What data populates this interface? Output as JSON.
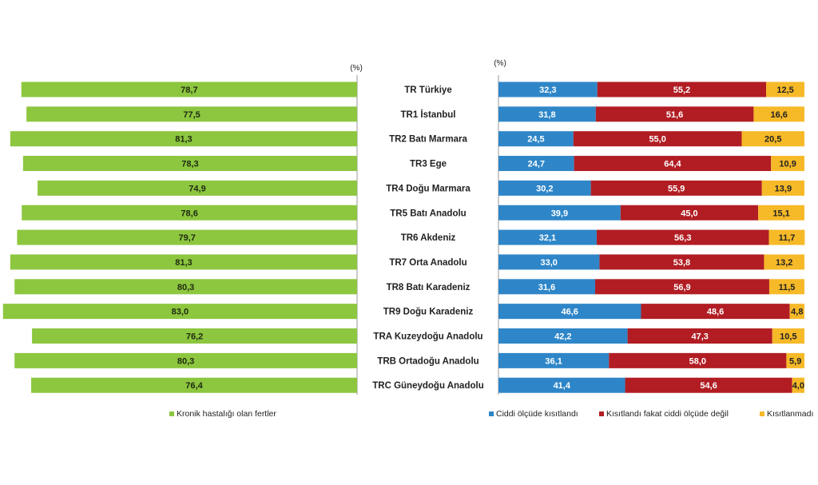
{
  "chart_data": [
    {
      "type": "bar",
      "orientation": "horizontal",
      "unit_label": "(%)",
      "categories": [
        "TR Türkiye",
        "TR1 İstanbul",
        "TR2 Batı Marmara",
        "TR3 Ege",
        "TR4 Doğu Marmara",
        "TR5 Batı Anadolu",
        "TR6 Akdeniz",
        "TR7 Orta Anadolu",
        "TR8 Batı Karadeniz",
        "TR9 Doğu Karadeniz",
        "TRA Kuzeydoğu Anadolu",
        "TRB Ortadoğu Anadolu",
        "TRC Güneydoğu Anadolu"
      ],
      "series": [
        {
          "name": "Kronik hastalığı olan fertler",
          "color": "#8dc63f",
          "values": [
            78.7,
            77.5,
            81.3,
            78.3,
            74.9,
            78.6,
            79.7,
            81.3,
            80.3,
            83.0,
            76.2,
            80.3,
            76.4
          ],
          "labels": [
            "78,7",
            "77,5",
            "81,3",
            "78,3",
            "74,9",
            "78,6",
            "79,7",
            "81,3",
            "80,3",
            "83,0",
            "76,2",
            "80,3",
            "76,4"
          ]
        }
      ],
      "legend": "bottom-left"
    },
    {
      "type": "bar",
      "orientation": "horizontal",
      "stacked": true,
      "unit_label": "(%)",
      "xlim": [
        0,
        100
      ],
      "categories": [
        "TR Türkiye",
        "TR1 İstanbul",
        "TR2 Batı Marmara",
        "TR3 Ege",
        "TR4 Doğu Marmara",
        "TR5 Batı Anadolu",
        "TR6 Akdeniz",
        "TR7 Orta Anadolu",
        "TR8 Batı Karadeniz",
        "TR9 Doğu Karadeniz",
        "TRA Kuzeydoğu Anadolu",
        "TRB Ortadoğu Anadolu",
        "TRC Güneydoğu Anadolu"
      ],
      "series": [
        {
          "name": "Ciddi ölçüde kısıtlandı",
          "color": "#2e86c8",
          "values": [
            32.3,
            31.8,
            24.5,
            24.7,
            30.2,
            39.9,
            32.1,
            33.0,
            31.6,
            46.6,
            42.2,
            36.1,
            41.4
          ],
          "labels": [
            "32,3",
            "31,8",
            "24,5",
            "24,7",
            "30,2",
            "39,9",
            "32,1",
            "33,0",
            "31,6",
            "46,6",
            "42,2",
            "36,1",
            "41,4"
          ]
        },
        {
          "name": "Kısıtlandı fakat ciddi ölçüde değil",
          "color": "#b11d23",
          "values": [
            55.2,
            51.6,
            55.0,
            64.4,
            55.9,
            45.0,
            56.3,
            53.8,
            56.9,
            48.6,
            47.3,
            58.0,
            54.6
          ],
          "labels": [
            "55,2",
            "51,6",
            "55,0",
            "64,4",
            "55,9",
            "45,0",
            "56,3",
            "53,8",
            "56,9",
            "48,6",
            "47,3",
            "58,0",
            "54,6"
          ]
        },
        {
          "name": "Kısıtlanmadı",
          "color": "#f6b928",
          "values": [
            12.5,
            16.6,
            20.5,
            10.9,
            13.9,
            15.1,
            11.7,
            13.2,
            11.5,
            4.8,
            10.5,
            5.9,
            4.0
          ],
          "labels": [
            "12,5",
            "16,6",
            "20,5",
            "10,9",
            "13,9",
            "15,1",
            "11,7",
            "13,2",
            "11,5",
            "4,8",
            "10,5",
            "5,9",
            "4,0"
          ]
        }
      ],
      "legend": "bottom"
    }
  ]
}
